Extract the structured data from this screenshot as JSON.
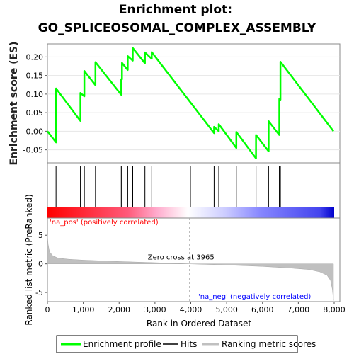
{
  "chart_data": {
    "type": "line",
    "title_line1": "Enrichment plot:",
    "title_line2": "GO_SPLICEOSOMAL_COMPLEX_ASSEMBLY",
    "top_panel": {
      "ylabel": "Enrichment score (ES)",
      "ylim": [
        -0.085,
        0.235
      ],
      "yticks": [
        -0.05,
        0.0,
        0.05,
        0.1,
        0.15,
        0.2
      ],
      "ytick_labels": [
        "-0.05",
        "0.00",
        "0.05",
        "0.10",
        "0.15",
        "0.20"
      ],
      "series": [
        {
          "name": "Enrichment profile",
          "color": "#00ff00",
          "x": [
            0,
            240,
            240,
            920,
            920,
            1030,
            1030,
            1340,
            1340,
            2060,
            2060,
            2080,
            2080,
            2240,
            2240,
            2380,
            2380,
            2720,
            2720,
            2910,
            2910,
            4650,
            4650,
            4780,
            4780,
            5270,
            5270,
            5820,
            5820,
            6170,
            6170,
            6470,
            6470,
            6500,
            6500,
            7980
          ],
          "y": [
            0.0,
            -0.03,
            0.115,
            0.028,
            0.103,
            0.094,
            0.162,
            0.124,
            0.186,
            0.098,
            0.14,
            0.14,
            0.184,
            0.165,
            0.202,
            0.19,
            0.224,
            0.183,
            0.212,
            0.195,
            0.213,
            -0.005,
            0.012,
            0.0,
            0.019,
            -0.045,
            -0.002,
            -0.073,
            -0.01,
            -0.054,
            0.027,
            -0.01,
            0.087,
            0.085,
            0.187,
            0.0
          ]
        }
      ]
    },
    "hits": {
      "name": "Hits",
      "color": "#000000",
      "positions": [
        240,
        920,
        1030,
        1340,
        2060,
        2080,
        2240,
        2380,
        2720,
        2910,
        3990,
        4650,
        4780,
        5270,
        5820,
        6170,
        6470,
        6500
      ]
    },
    "ranking_bar": {
      "label_pos": "'na_pos' (positively correlated)",
      "label_neg": "'na_neg' (negatively correlated)",
      "color_pos": "#ff0000",
      "color_neg": "#0000ff"
    },
    "bottom_panel": {
      "ylabel": "Ranked list metric (PreRanked)",
      "ylim": [
        -6.6,
        8
      ],
      "yticks": [
        -5,
        0,
        5
      ],
      "ytick_labels": [
        "-5",
        "0",
        "5"
      ],
      "zero_cross_text": "Zero cross at 3965",
      "zero_cross": 3965,
      "series": [
        {
          "name": "Ranking metric scores",
          "color": "#c0c0c0",
          "x": [
            0,
            20,
            60,
            150,
            300,
            600,
            1000,
            2000,
            3000,
            3965,
            5000,
            6000,
            6800,
            7300,
            7600,
            7800,
            7900,
            7950,
            7980
          ],
          "y": [
            5.0,
            3.4,
            2.1,
            1.4,
            1.0,
            0.8,
            0.65,
            0.4,
            0.2,
            0.0,
            -0.2,
            -0.45,
            -0.75,
            -1.0,
            -1.4,
            -2.0,
            -2.9,
            -4.5,
            -6.4
          ]
        }
      ]
    },
    "xlabel": "Rank in Ordered Dataset",
    "xlim": [
      0,
      8000
    ],
    "xticks": [
      0,
      1000,
      2000,
      3000,
      4000,
      5000,
      6000,
      7000,
      8000
    ],
    "xtick_labels": [
      "0",
      "1,000",
      "2,000",
      "3,000",
      "4,000",
      "5,000",
      "6,000",
      "7,000",
      "8,000"
    ],
    "legend": [
      {
        "label": "Enrichment profile",
        "color": "#00ff00"
      },
      {
        "label": "Hits",
        "color": "#000000"
      },
      {
        "label": "Ranking metric scores",
        "color": "#c0c0c0"
      }
    ],
    "legend_position": "bottom"
  }
}
